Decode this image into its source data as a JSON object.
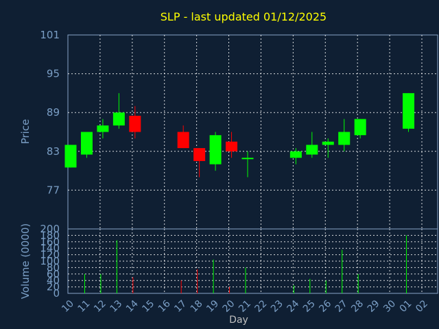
{
  "chart_data": {
    "type": "candlestick",
    "title": "SLP - last updated 01/12/2025",
    "xlabel": "Day",
    "price_ylabel": "Price",
    "volume_ylabel": "Volume (0000)",
    "x_ticks": [
      "10",
      "11",
      "12",
      "13",
      "14",
      "15",
      "16",
      "17",
      "18",
      "19",
      "20",
      "21",
      "22",
      "23",
      "24",
      "25",
      "26",
      "27",
      "28",
      "29",
      "30",
      "01",
      "02"
    ],
    "price_ylim": [
      71,
      101
    ],
    "price_ticks": [
      "101",
      "95",
      "89",
      "83",
      "77"
    ],
    "volume_ylim": [
      0,
      200
    ],
    "volume_ticks": [
      "200",
      "180",
      "160",
      "140",
      "120",
      "100",
      "80",
      "60",
      "40",
      "20",
      "0"
    ],
    "colors": {
      "up": "#00ff00",
      "down": "#ff0000",
      "neutral": "#00ff00",
      "background": "#0f1f33",
      "title": "#ffff00",
      "axis": "#7b9fc6"
    },
    "candles": [
      {
        "day": "10",
        "open": 80.5,
        "close": 84.0,
        "high": 84.0,
        "low": 80.5,
        "volume": 0
      },
      {
        "day": "11",
        "open": 82.5,
        "close": 86.0,
        "high": 86.0,
        "low": 82.0,
        "volume": 60
      },
      {
        "day": "12",
        "open": 86.0,
        "close": 87.0,
        "high": 88.0,
        "low": 85.0,
        "volume": 60
      },
      {
        "day": "13",
        "open": 87.0,
        "close": 89.0,
        "high": 92.0,
        "low": 86.5,
        "volume": 165
      },
      {
        "day": "14",
        "open": 88.5,
        "close": 86.0,
        "high": 90.0,
        "low": 85.0,
        "volume": 50
      },
      {
        "day": "17",
        "open": 86.0,
        "close": 83.5,
        "high": 87.0,
        "low": 83.5,
        "volume": 40
      },
      {
        "day": "18",
        "open": 83.5,
        "close": 81.5,
        "high": 83.5,
        "low": 79.0,
        "volume": 75
      },
      {
        "day": "19",
        "open": 81.0,
        "close": 85.5,
        "high": 86.0,
        "low": 80.0,
        "volume": 105
      },
      {
        "day": "20",
        "open": 84.5,
        "close": 83.0,
        "high": 86.0,
        "low": 82.0,
        "volume": 20
      },
      {
        "day": "21",
        "open": 82.0,
        "close": 82.0,
        "high": 83.0,
        "low": 79.0,
        "volume": 80
      },
      {
        "day": "24",
        "open": 82.0,
        "close": 83.0,
        "high": 83.5,
        "low": 81.0,
        "volume": 25
      },
      {
        "day": "25",
        "open": 82.5,
        "close": 84.0,
        "high": 86.0,
        "low": 82.0,
        "volume": 45
      },
      {
        "day": "26",
        "open": 84.0,
        "close": 84.5,
        "high": 85.0,
        "low": 82.0,
        "volume": 40
      },
      {
        "day": "27",
        "open": 84.0,
        "close": 86.0,
        "high": 88.0,
        "low": 83.0,
        "volume": 135
      },
      {
        "day": "28",
        "open": 85.5,
        "close": 88.0,
        "high": 88.0,
        "low": 85.0,
        "volume": 60
      },
      {
        "day": "01",
        "open": 86.5,
        "close": 92.0,
        "high": 92.0,
        "low": 86.0,
        "volume": 180
      }
    ]
  }
}
